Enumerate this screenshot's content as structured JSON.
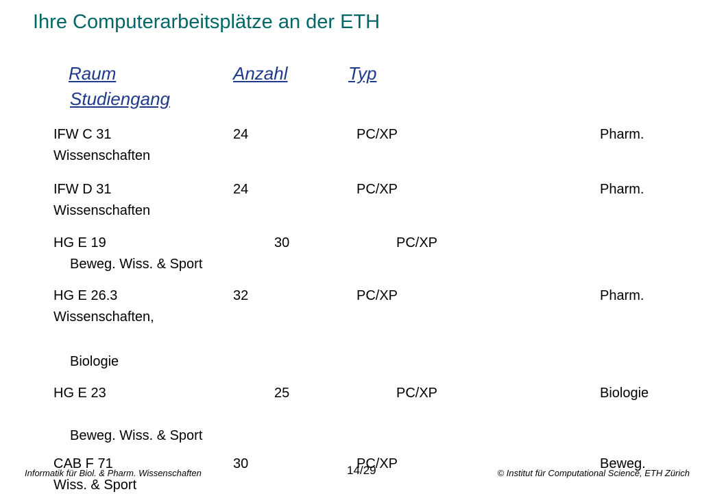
{
  "slide": {
    "title": "Ihre Computerarbeitsplätze an der ETH"
  },
  "table": {
    "headers": [
      "Raum",
      "Anzahl",
      "Typ",
      "Studiengang"
    ],
    "rows": [
      {
        "raum": "IFW C 31",
        "anzahl": "24",
        "typ": "PC/XP",
        "studiengang": [
          "Pharm.",
          "Wissenschaften"
        ]
      },
      {
        "raum": "IFW D 31",
        "anzahl": "24",
        "typ": "PC/XP",
        "studiengang": [
          "Pharm.",
          "Wissenschaften"
        ]
      },
      {
        "raum": "HG E 19",
        "anzahl": "30",
        "typ": "PC/XP",
        "studiengang": [
          "Beweg. Wiss. & Sport"
        ]
      },
      {
        "raum": "HG E 26.3",
        "anzahl": "32",
        "typ": "PC/XP",
        "studiengang": [
          "Pharm.",
          "Wissenschaften,",
          "Biologie"
        ]
      },
      {
        "raum": "HG E 23",
        "anzahl": "25",
        "typ": "PC/XP",
        "studiengang": [
          "Biologie",
          "Beweg. Wiss. & Sport"
        ]
      },
      {
        "raum": "CAB F 71",
        "anzahl": "30",
        "typ": "PC/XP",
        "studiengang": [
          "Beweg.",
          "Wiss. & Sport"
        ]
      }
    ]
  },
  "footer": {
    "left": "Informatik für Biol. & Pharm. Wissenschaften",
    "page": "14/29",
    "right": "© Institut für Computational Science, ETH Zürich"
  }
}
